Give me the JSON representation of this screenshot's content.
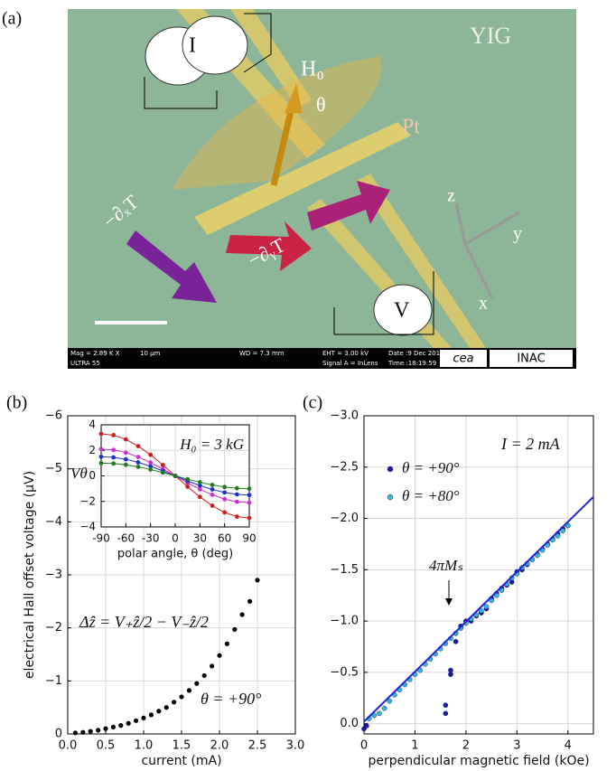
{
  "panel_a": {
    "panel": "(a)",
    "material": "YIG",
    "current_source": "I",
    "field": "H₀",
    "angle": "θ",
    "metal": "Pt",
    "gradient_x": "−∂ₓT",
    "gradient_y": "−∂ᵧT",
    "voltmeter": "V",
    "axis_x": "x",
    "axis_y": "y",
    "axis_z": "z",
    "sem_info": {
      "mag": "Mag = 2.89 K X",
      "scale": "10 μm",
      "wd": "WD = 7.3 mm",
      "eht": "EHT = 3.00 kV",
      "date": "Date :9 Dec 2016",
      "instrument": "ULTRA 55",
      "signal": "Signal A = InLens",
      "time": "Time :18:19:59",
      "logo1": "cea",
      "logo2": "INAC"
    }
  },
  "chart_data": [
    {
      "type": "scatter",
      "panel": "(b)",
      "xlabel": "current (mA)",
      "ylabel": "electrical Hall offset voltage (μV)",
      "annotations": [
        "Δẑ = V₊ẑ/2 − V₋ẑ/2",
        "θ = +90°"
      ],
      "color": "#000000",
      "grid": true,
      "x": [
        0.1,
        0.2,
        0.3,
        0.4,
        0.5,
        0.6,
        0.7,
        0.8,
        0.9,
        1.0,
        1.1,
        1.2,
        1.3,
        1.4,
        1.5,
        1.6,
        1.7,
        1.8,
        1.9,
        2.0,
        2.1,
        2.2,
        2.3,
        2.4,
        2.5
      ],
      "values": [
        -0.02,
        -0.03,
        -0.05,
        -0.07,
        -0.1,
        -0.13,
        -0.16,
        -0.2,
        -0.25,
        -0.3,
        -0.36,
        -0.43,
        -0.5,
        -0.6,
        -0.7,
        -0.82,
        -0.95,
        -1.1,
        -1.28,
        -1.48,
        -1.7,
        -1.97,
        -2.25,
        -2.5,
        -2.9
      ],
      "xlim": [
        0,
        3
      ],
      "xticks": [
        {
          "value": 0,
          "label": "0.0"
        },
        0.5,
        {
          "value": 1,
          "label": "1.0"
        },
        1.5,
        {
          "value": 2,
          "label": "2.0"
        },
        2.5,
        {
          "value": 3,
          "label": "3.0"
        }
      ],
      "ylim": [
        0,
        -6
      ],
      "yticks": [
        0,
        {
          "value": -1,
          "label": "−1"
        },
        {
          "value": -2,
          "label": "−2"
        },
        {
          "value": -3,
          "label": "−3"
        },
        {
          "value": -4,
          "label": "−4"
        },
        {
          "value": -5,
          "label": "−5"
        },
        {
          "value": -6,
          "label": "−6"
        }
      ]
    },
    {
      "type": "line",
      "xlabel": "polar angle, θ (deg)",
      "ylabel": "Vθ",
      "annotations": [
        "H₀ = 3 kG"
      ],
      "grid": true,
      "x": [
        -90,
        -75,
        -60,
        -45,
        -30,
        -15,
        0,
        15,
        30,
        45,
        60,
        75,
        90
      ],
      "series": [
        {
          "color": "#cc2020",
          "values": [
            3.3,
            3.19,
            2.86,
            2.33,
            1.65,
            0.85,
            0,
            -0.85,
            -1.65,
            -2.33,
            -2.86,
            -3.19,
            -3.3
          ]
        },
        {
          "color": "#cc30cc",
          "values": [
            2.1,
            2.03,
            1.82,
            1.48,
            1.05,
            0.54,
            0,
            -0.54,
            -1.05,
            -1.48,
            -1.82,
            -2.03,
            -2.1
          ]
        },
        {
          "color": "#2030cc",
          "values": [
            1.5,
            1.45,
            1.3,
            1.06,
            0.75,
            0.39,
            0,
            -0.39,
            -0.75,
            -1.06,
            -1.3,
            -1.45,
            -1.5
          ]
        },
        {
          "color": "#207a20",
          "values": [
            1.0,
            0.97,
            0.87,
            0.71,
            0.5,
            0.26,
            0,
            -0.26,
            -0.5,
            -0.71,
            -0.87,
            -0.97,
            -1.0
          ]
        }
      ],
      "xlim": [
        -90,
        90
      ],
      "xticks": [
        -90,
        -60,
        -30,
        0,
        30,
        60,
        90
      ],
      "ylim": [
        -4,
        4
      ],
      "yticks": [
        {
          "value": -4,
          "label": "−4"
        },
        {
          "value": -2,
          "label": "−2"
        },
        0,
        2,
        4
      ]
    },
    {
      "type": "scatter",
      "panel": "(c)",
      "xlabel": "perpendicular magnetic field (kOe)",
      "annotations": [
        "I = 2 mA",
        "4πMₛ"
      ],
      "grid": true,
      "series": [
        {
          "name": "θ = +90°",
          "color": "#1a1aa8",
          "x": [
            0.0,
            0.05,
            1.6,
            1.6,
            1.7,
            1.7,
            1.8,
            1.8,
            1.9,
            2.0,
            2.1,
            2.2,
            2.3,
            2.4,
            2.5,
            2.6,
            2.7,
            2.8,
            2.9,
            3.0,
            3.1,
            3.2,
            3.3,
            3.4,
            3.5,
            3.6,
            3.7,
            3.8,
            3.9,
            4.0
          ],
          "values": [
            0.05,
            0.02,
            -0.1,
            -0.18,
            -0.48,
            -0.52,
            -0.8,
            -0.88,
            -0.95,
            -1.0,
            -1.0,
            -1.05,
            -1.08,
            -1.12,
            -1.22,
            -1.27,
            -1.32,
            -1.35,
            -1.38,
            -1.48,
            -1.5,
            -1.55,
            -1.6,
            -1.65,
            -1.7,
            -1.75,
            -1.8,
            -1.85,
            -1.9,
            -1.93
          ]
        },
        {
          "name": "θ = +80°",
          "color": "#33b8dd",
          "x": [
            0.1,
            0.2,
            0.3,
            0.4,
            0.5,
            0.6,
            0.7,
            0.8,
            0.9,
            1.0,
            1.1,
            1.2,
            1.3,
            1.4,
            1.5,
            1.6,
            1.7,
            1.8,
            1.9,
            2.0,
            2.1,
            2.2,
            2.3,
            2.4,
            2.5,
            2.6,
            2.7,
            2.8,
            2.9,
            3.0,
            3.1,
            3.2,
            3.3,
            3.4,
            3.5,
            3.6,
            3.7,
            3.8,
            3.9,
            4.0
          ],
          "values": [
            -0.05,
            -0.08,
            -0.1,
            -0.15,
            -0.22,
            -0.28,
            -0.33,
            -0.38,
            -0.43,
            -0.48,
            -0.52,
            -0.58,
            -0.63,
            -0.68,
            -0.73,
            -0.78,
            -0.83,
            -0.88,
            -0.93,
            -0.98,
            -1.02,
            -1.06,
            -1.1,
            -1.14,
            -1.2,
            -1.25,
            -1.3,
            -1.36,
            -1.42,
            -1.46,
            -1.52,
            -1.56,
            -1.6,
            -1.64,
            -1.69,
            -1.74,
            -1.79,
            -1.83,
            -1.88,
            -1.93
          ]
        },
        {
          "style": "line",
          "color": "#2222dd",
          "x": [
            0,
            4.5
          ],
          "values": [
            -0.02,
            -2.21
          ]
        }
      ],
      "xlim": [
        0,
        4.5
      ],
      "xticks": [
        0,
        1,
        2,
        3,
        4
      ],
      "ylim": [
        0.1,
        -3.0
      ],
      "yticks": [
        {
          "value": 0,
          "label": "0.0"
        },
        {
          "value": -0.5,
          "label": "−0.5"
        },
        {
          "value": -1,
          "label": "−1.0"
        },
        {
          "value": -1.5,
          "label": "−1.5"
        },
        {
          "value": -2,
          "label": "−2.0"
        },
        {
          "value": -2.5,
          "label": "−2.5"
        },
        {
          "value": -3,
          "label": "−3.0"
        }
      ]
    }
  ]
}
